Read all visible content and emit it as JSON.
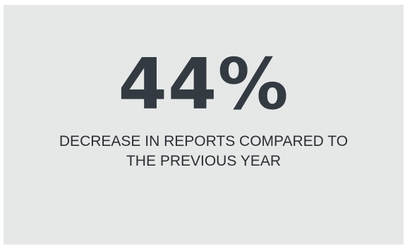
{
  "stat": {
    "value": "44%",
    "caption_line1": "DECREASE IN REPORTS COMPARED TO",
    "caption_line2": "THE PREVIOUS YEAR"
  },
  "colors": {
    "card_background": "#e6e8e8",
    "value_text": "#333a41",
    "caption_text": "#2b2f33"
  }
}
